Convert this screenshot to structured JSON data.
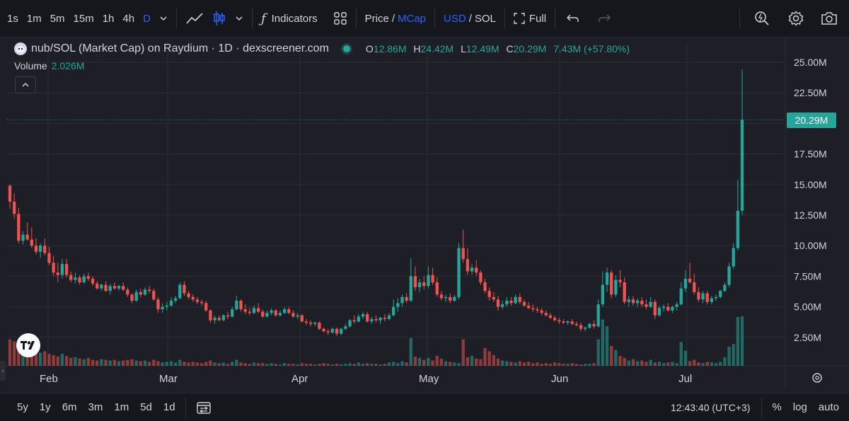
{
  "toolbar": {
    "timeframes": [
      "1s",
      "1m",
      "5m",
      "15m",
      "1h",
      "4h",
      "D"
    ],
    "active_timeframe": "D",
    "indicators_label": "Indicators",
    "price_label": "Price",
    "slash": "/",
    "mcap_label": "MCap",
    "usd_label": "USD",
    "sol_label": "SOL",
    "full_label": "Full"
  },
  "legend": {
    "title": "nub/SOL (Market Cap) on Raydium · 1D · dexscreener.com",
    "o_key": "O",
    "o_val": "12.86M",
    "h_key": "H",
    "h_val": "24.42M",
    "l_key": "L",
    "l_val": "12.49M",
    "c_key": "C",
    "c_val": "20.29M",
    "change": "7.43M (+57.80%)",
    "volume_key": "Volume",
    "volume_val": "2.026M"
  },
  "price_tag": "20.29M",
  "colors": {
    "up": "#26a69a",
    "down": "#ef5350",
    "accent": "#2962ff",
    "bg": "#1e1f26"
  },
  "chart_data": {
    "type": "candlestick",
    "y_axis_ticks": [
      "25.00M",
      "22.50M",
      "20.00M",
      "17.50M",
      "15.00M",
      "12.50M",
      "10.00M",
      "7.50M",
      "5.00M",
      "2.50M"
    ],
    "y_range": [
      0,
      26
    ],
    "x_axis_labels": [
      "Feb",
      "Mar",
      "Apr",
      "May",
      "Jun",
      "Jul"
    ],
    "last_close": 20.29,
    "candles": [
      [
        14.9,
        15.0,
        13.0,
        13.6
      ],
      [
        13.6,
        14.3,
        12.2,
        12.6
      ],
      [
        12.6,
        13.1,
        10.2,
        10.4
      ],
      [
        10.4,
        11.2,
        10.1,
        10.9
      ],
      [
        10.9,
        11.9,
        10.4,
        10.5
      ],
      [
        10.5,
        11.5,
        9.8,
        10.0
      ],
      [
        10.0,
        10.6,
        9.3,
        9.5
      ],
      [
        9.5,
        10.2,
        9.0,
        10.0
      ],
      [
        10.0,
        10.6,
        9.2,
        9.4
      ],
      [
        9.4,
        9.9,
        8.4,
        8.6
      ],
      [
        8.6,
        9.2,
        7.5,
        7.8
      ],
      [
        7.8,
        8.6,
        7.0,
        7.6
      ],
      [
        7.6,
        8.9,
        7.3,
        8.5
      ],
      [
        8.5,
        8.9,
        7.4,
        7.6
      ],
      [
        7.6,
        7.9,
        7.0,
        7.2
      ],
      [
        7.2,
        7.8,
        6.9,
        7.4
      ],
      [
        7.4,
        7.6,
        6.8,
        7.0
      ],
      [
        7.0,
        7.7,
        6.9,
        7.5
      ],
      [
        7.5,
        7.8,
        7.1,
        7.3
      ],
      [
        7.3,
        7.5,
        6.7,
        6.9
      ],
      [
        6.9,
        7.1,
        6.4,
        6.5
      ],
      [
        6.5,
        6.9,
        6.3,
        6.8
      ],
      [
        6.8,
        7.1,
        6.2,
        6.3
      ],
      [
        6.3,
        6.9,
        6.0,
        6.7
      ],
      [
        6.7,
        7.0,
        6.4,
        6.5
      ],
      [
        6.5,
        6.8,
        6.3,
        6.7
      ],
      [
        6.7,
        7.0,
        6.3,
        6.4
      ],
      [
        6.4,
        6.6,
        5.8,
        6.0
      ],
      [
        6.0,
        6.1,
        5.3,
        5.5
      ],
      [
        5.5,
        6.4,
        5.4,
        6.2
      ],
      [
        6.2,
        6.5,
        5.8,
        6.0
      ],
      [
        6.0,
        6.6,
        5.9,
        6.4
      ],
      [
        6.4,
        6.7,
        6.1,
        6.3
      ],
      [
        6.3,
        6.5,
        5.5,
        5.6
      ],
      [
        5.6,
        5.8,
        4.5,
        4.8
      ],
      [
        4.8,
        5.3,
        4.5,
        5.0
      ],
      [
        5.0,
        5.4,
        4.7,
        5.1
      ],
      [
        5.1,
        5.8,
        5.0,
        5.5
      ],
      [
        5.5,
        5.9,
        5.3,
        5.7
      ],
      [
        5.7,
        7.0,
        5.6,
        6.8
      ],
      [
        6.8,
        7.1,
        5.9,
        6.1
      ],
      [
        6.1,
        6.3,
        5.6,
        5.8
      ],
      [
        5.8,
        6.0,
        5.4,
        5.6
      ],
      [
        5.6,
        5.8,
        5.2,
        5.4
      ],
      [
        5.4,
        5.6,
        5.1,
        5.3
      ],
      [
        5.3,
        5.5,
        4.6,
        4.7
      ],
      [
        4.7,
        4.8,
        3.7,
        3.9
      ],
      [
        3.9,
        4.3,
        3.6,
        4.1
      ],
      [
        4.1,
        4.3,
        3.8,
        3.9
      ],
      [
        3.9,
        4.4,
        3.8,
        4.3
      ],
      [
        4.3,
        4.6,
        4.0,
        4.2
      ],
      [
        4.2,
        5.0,
        4.1,
        4.8
      ],
      [
        4.8,
        5.9,
        4.7,
        5.5
      ],
      [
        5.5,
        5.6,
        4.6,
        4.8
      ],
      [
        4.8,
        5.2,
        4.4,
        4.6
      ],
      [
        4.6,
        4.9,
        4.3,
        4.5
      ],
      [
        4.5,
        5.1,
        4.4,
        4.9
      ],
      [
        4.9,
        5.3,
        4.5,
        4.6
      ],
      [
        4.6,
        4.8,
        4.1,
        4.2
      ],
      [
        4.2,
        4.7,
        4.1,
        4.5
      ],
      [
        4.5,
        4.9,
        4.3,
        4.7
      ],
      [
        4.7,
        4.8,
        4.2,
        4.3
      ],
      [
        4.3,
        4.7,
        4.2,
        4.5
      ],
      [
        4.5,
        5.0,
        4.4,
        4.8
      ],
      [
        4.8,
        5.0,
        4.4,
        4.5
      ],
      [
        4.5,
        4.7,
        4.1,
        4.2
      ],
      [
        4.2,
        4.5,
        4.0,
        4.3
      ],
      [
        4.3,
        4.4,
        3.7,
        3.8
      ],
      [
        3.8,
        4.0,
        3.5,
        3.7
      ],
      [
        3.7,
        3.9,
        3.4,
        3.6
      ],
      [
        3.6,
        3.8,
        3.4,
        3.7
      ],
      [
        3.7,
        3.8,
        3.1,
        3.2
      ],
      [
        3.2,
        3.3,
        2.9,
        3.0
      ],
      [
        3.0,
        3.2,
        2.7,
        2.9
      ],
      [
        2.9,
        3.3,
        2.8,
        3.2
      ],
      [
        3.2,
        3.3,
        2.6,
        2.8
      ],
      [
        2.8,
        3.3,
        2.7,
        3.2
      ],
      [
        3.2,
        3.6,
        3.1,
        3.4
      ],
      [
        3.4,
        4.0,
        3.3,
        3.9
      ],
      [
        3.9,
        4.3,
        3.6,
        3.8
      ],
      [
        3.8,
        4.4,
        3.7,
        4.2
      ],
      [
        4.2,
        4.6,
        4.0,
        4.4
      ],
      [
        4.4,
        4.6,
        3.7,
        3.8
      ],
      [
        3.8,
        4.2,
        3.6,
        4.0
      ],
      [
        4.0,
        4.3,
        3.7,
        3.9
      ],
      [
        3.9,
        4.2,
        3.6,
        4.1
      ],
      [
        4.1,
        4.4,
        3.8,
        4.0
      ],
      [
        4.0,
        4.5,
        3.9,
        4.3
      ],
      [
        4.3,
        5.6,
        4.2,
        5.0
      ],
      [
        5.0,
        5.7,
        4.6,
        5.3
      ],
      [
        5.3,
        6.0,
        5.0,
        5.8
      ],
      [
        5.8,
        6.1,
        5.3,
        5.5
      ],
      [
        5.5,
        9.0,
        5.4,
        7.5
      ],
      [
        7.5,
        8.3,
        6.3,
        6.6
      ],
      [
        6.6,
        7.3,
        6.2,
        7.0
      ],
      [
        7.0,
        7.5,
        6.4,
        6.7
      ],
      [
        6.7,
        8.3,
        6.5,
        7.6
      ],
      [
        7.6,
        8.2,
        6.8,
        7.0
      ],
      [
        7.0,
        7.4,
        5.8,
        6.0
      ],
      [
        6.0,
        6.3,
        5.5,
        5.7
      ],
      [
        5.7,
        6.0,
        5.4,
        5.8
      ],
      [
        5.8,
        6.1,
        5.3,
        5.5
      ],
      [
        5.5,
        6.0,
        5.4,
        5.8
      ],
      [
        5.8,
        10.2,
        5.6,
        9.8
      ],
      [
        9.8,
        11.3,
        8.6,
        8.9
      ],
      [
        8.9,
        9.8,
        7.6,
        7.9
      ],
      [
        7.9,
        8.5,
        7.6,
        8.2
      ],
      [
        8.2,
        8.8,
        7.5,
        7.8
      ],
      [
        7.8,
        8.0,
        6.8,
        7.0
      ],
      [
        7.0,
        7.3,
        6.1,
        6.3
      ],
      [
        6.3,
        6.6,
        5.5,
        5.8
      ],
      [
        5.8,
        6.2,
        5.4,
        5.6
      ],
      [
        5.6,
        5.9,
        4.7,
        5.0
      ],
      [
        5.0,
        5.5,
        4.8,
        5.2
      ],
      [
        5.2,
        5.8,
        5.0,
        5.5
      ],
      [
        5.5,
        5.8,
        5.1,
        5.3
      ],
      [
        5.3,
        6.0,
        5.2,
        5.8
      ],
      [
        5.8,
        6.1,
        5.2,
        5.4
      ],
      [
        5.4,
        5.6,
        5.0,
        5.1
      ],
      [
        5.1,
        5.4,
        4.8,
        4.9
      ],
      [
        4.9,
        5.2,
        4.6,
        4.8
      ],
      [
        4.8,
        5.0,
        4.5,
        4.7
      ],
      [
        4.7,
        4.9,
        4.3,
        4.5
      ],
      [
        4.5,
        4.7,
        4.2,
        4.3
      ],
      [
        4.3,
        4.5,
        4.0,
        4.1
      ],
      [
        4.1,
        4.3,
        3.8,
        3.9
      ],
      [
        3.9,
        4.1,
        3.6,
        3.8
      ],
      [
        3.8,
        4.0,
        3.6,
        3.7
      ],
      [
        3.7,
        3.9,
        3.5,
        3.8
      ],
      [
        3.8,
        4.0,
        3.5,
        3.6
      ],
      [
        3.6,
        3.8,
        3.4,
        3.5
      ],
      [
        3.5,
        3.7,
        3.0,
        3.2
      ],
      [
        3.2,
        3.4,
        3.0,
        3.3
      ],
      [
        3.3,
        3.7,
        3.2,
        3.6
      ],
      [
        3.6,
        3.9,
        3.2,
        3.4
      ],
      [
        3.4,
        5.6,
        3.3,
        5.2
      ],
      [
        5.2,
        7.9,
        5.0,
        6.8
      ],
      [
        6.8,
        8.2,
        6.2,
        7.8
      ],
      [
        7.8,
        8.0,
        5.7,
        6.0
      ],
      [
        6.0,
        7.6,
        5.8,
        7.2
      ],
      [
        7.2,
        8.0,
        6.6,
        7.0
      ],
      [
        7.0,
        7.4,
        5.2,
        5.4
      ],
      [
        5.4,
        5.9,
        5.0,
        5.6
      ],
      [
        5.6,
        5.9,
        5.1,
        5.3
      ],
      [
        5.3,
        5.7,
        5.0,
        5.5
      ],
      [
        5.5,
        5.8,
        5.0,
        5.2
      ],
      [
        5.2,
        5.6,
        4.8,
        5.0
      ],
      [
        5.0,
        5.8,
        4.9,
        5.4
      ],
      [
        5.4,
        5.6,
        4.0,
        4.3
      ],
      [
        4.3,
        5.1,
        4.2,
        4.9
      ],
      [
        4.9,
        5.2,
        4.6,
        5.0
      ],
      [
        5.0,
        5.3,
        4.6,
        4.7
      ],
      [
        4.7,
        5.1,
        4.5,
        5.0
      ],
      [
        5.0,
        5.4,
        4.7,
        5.2
      ],
      [
        5.2,
        7.0,
        5.1,
        6.5
      ],
      [
        6.5,
        8.0,
        6.2,
        7.3
      ],
      [
        7.3,
        8.6,
        6.9,
        7.0
      ],
      [
        7.0,
        7.7,
        6.0,
        6.2
      ],
      [
        6.2,
        6.6,
        5.4,
        5.6
      ],
      [
        5.6,
        6.3,
        5.3,
        6.1
      ],
      [
        6.1,
        6.3,
        5.2,
        5.4
      ],
      [
        5.4,
        5.9,
        5.2,
        5.7
      ],
      [
        5.7,
        6.0,
        5.5,
        5.8
      ],
      [
        5.8,
        6.4,
        5.7,
        6.3
      ],
      [
        6.3,
        7.0,
        6.2,
        6.8
      ],
      [
        6.8,
        8.6,
        6.6,
        8.3
      ],
      [
        8.3,
        10.2,
        8.1,
        9.8
      ],
      [
        9.8,
        15.4,
        9.6,
        12.86
      ],
      [
        12.86,
        24.42,
        12.49,
        20.29
      ]
    ],
    "volume": [
      4.0,
      3.7,
      3.0,
      2.8,
      2.6,
      2.9,
      2.4,
      2.0,
      2.2,
      1.8,
      1.6,
      1.4,
      1.8,
      1.5,
      1.2,
      1.3,
      1.1,
      1.0,
      1.2,
      0.9,
      0.8,
      1.0,
      0.9,
      0.8,
      0.9,
      0.7,
      0.8,
      0.9,
      1.0,
      0.8,
      0.7,
      0.8,
      0.6,
      0.9,
      0.7,
      0.5,
      0.6,
      0.7,
      0.5,
      0.9,
      0.6,
      0.5,
      0.6,
      0.5,
      0.4,
      0.6,
      0.8,
      0.5,
      0.4,
      0.5,
      0.3,
      0.6,
      0.9,
      0.5,
      0.4,
      0.3,
      0.5,
      0.4,
      0.4,
      0.3,
      0.4,
      0.3,
      0.2,
      0.4,
      0.3,
      0.3,
      0.2,
      0.4,
      0.3,
      0.3,
      0.2,
      0.3,
      0.4,
      0.3,
      0.2,
      0.3,
      0.2,
      0.3,
      0.4,
      0.3,
      0.5,
      0.3,
      0.4,
      0.3,
      0.3,
      0.2,
      0.3,
      0.5,
      0.6,
      0.4,
      0.7,
      0.5,
      4.2,
      1.4,
      1.2,
      0.9,
      1.2,
      0.8,
      1.5,
      1.1,
      0.7,
      0.6,
      0.5,
      0.4,
      4.0,
      1.3,
      1.5,
      1.1,
      1.0,
      2.7,
      2.2,
      1.6,
      1.1,
      0.8,
      0.7,
      0.6,
      0.5,
      0.7,
      0.5,
      0.6,
      0.4,
      0.5,
      0.3,
      0.4,
      0.3,
      0.5,
      0.4,
      0.3,
      0.3,
      0.4,
      0.3,
      0.2,
      0.3,
      0.3,
      0.4,
      4.0,
      7.0,
      6.0,
      3.0,
      2.4,
      1.5,
      1.2,
      0.8,
      1.0,
      0.7,
      0.8,
      0.6,
      0.9,
      0.5,
      0.6,
      0.4,
      0.5,
      0.6,
      0.4,
      3.6,
      2.3,
      0.7,
      0.9,
      0.5,
      0.4,
      0.6,
      0.5,
      0.4,
      0.6,
      1.3,
      2.9,
      3.3,
      7.4,
      7.5
    ]
  },
  "bottombar": {
    "ranges": [
      "5y",
      "1y",
      "6m",
      "3m",
      "1m",
      "5d",
      "1d"
    ],
    "clock": "12:43:40 (UTC+3)",
    "pct_label": "%",
    "log_label": "log",
    "auto_label": "auto"
  }
}
